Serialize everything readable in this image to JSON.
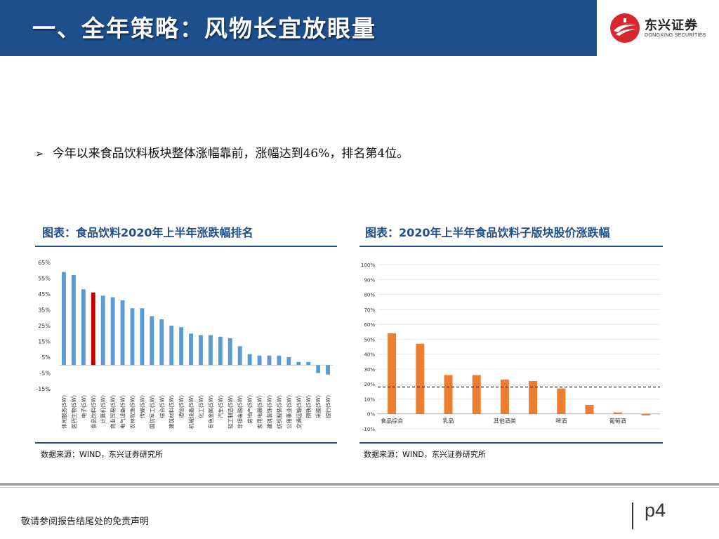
{
  "header": {
    "title": "一、全年策略：风物长宜放眼量",
    "color": "#1f4e8c"
  },
  "logo": {
    "name_cn": "东兴证券",
    "name_en": "DONGXING SECURITIES",
    "color": "#d7272e"
  },
  "bullet": {
    "marker": "➢",
    "text": "今年以来食品饮料板块整体涨幅靠前，涨幅达到46%，排名第4位。"
  },
  "charts": {
    "left": {
      "title": "图表：食品饮料2020年上半年涨跌幅排名",
      "source": "数据来源：WIND，东兴证券研究所"
    },
    "right": {
      "title": "图表：2020年上半年食品饮料子版块股价涨跌幅",
      "source": "数据来源：WIND，东兴证券研究所"
    }
  },
  "chart_data": [
    {
      "type": "bar",
      "categories": [
        "休闲服务(SW)",
        "医药生物(SW)",
        "电子(SW)",
        "食品饮料(SW)",
        "计算机(SW)",
        "商业贸易(SW)",
        "电气设备(SW)",
        "农林牧渔(SW)",
        "传媒(SW)",
        "国防军工(SW)",
        "综合(SW)",
        "建筑材料(SW)",
        "通信(SW)",
        "机械设备(SW)",
        "化工(SW)",
        "有色金属(SW)",
        "汽车(SW)",
        "轻工制造(SW)",
        "非银金融(SW)",
        "房地产(SW)",
        "家用电器(SW)",
        "建筑装饰(SW)",
        "纺织服装(SW)",
        "公用事业(SW)",
        "交通运输(SW)",
        "钢铁(SW)",
        "采掘(SW)",
        "银行(SW)"
      ],
      "values": [
        59,
        57,
        48,
        46,
        44,
        43,
        41,
        36,
        36,
        31,
        29,
        25,
        24,
        20,
        19,
        19,
        18,
        17,
        12,
        7,
        6,
        6,
        6,
        5,
        2,
        2,
        -5,
        -6
      ],
      "highlight_category": "食品饮料(SW)",
      "colors": {
        "bar": "#5b9bd5",
        "highlight": "#c00000"
      },
      "yticks": [
        "65%",
        "55%",
        "45%",
        "35%",
        "25%",
        "15%",
        "5%",
        "-5%",
        "-15%"
      ],
      "ylim": [
        -15,
        65
      ],
      "grid": false
    },
    {
      "type": "bar",
      "categories": [
        "食品综合",
        "",
        "乳品",
        "",
        "其他酒类",
        "",
        "啤酒",
        "",
        "葡萄酒",
        ""
      ],
      "values": [
        54,
        47,
        26,
        26,
        23,
        22,
        17,
        6,
        1,
        -1
      ],
      "reference_line": 18,
      "colors": {
        "bar": "#ed7d31",
        "reference": "#000000"
      },
      "yticks": [
        "100%",
        "90%",
        "80%",
        "70%",
        "60%",
        "50%",
        "40%",
        "30%",
        "20%",
        "10%",
        "0%",
        "-10%"
      ],
      "ylim": [
        -10,
        100
      ],
      "grid": true
    }
  ],
  "footer": {
    "disclaimer": "敬请参阅报告结尾处的免责声明",
    "page": "p4"
  }
}
